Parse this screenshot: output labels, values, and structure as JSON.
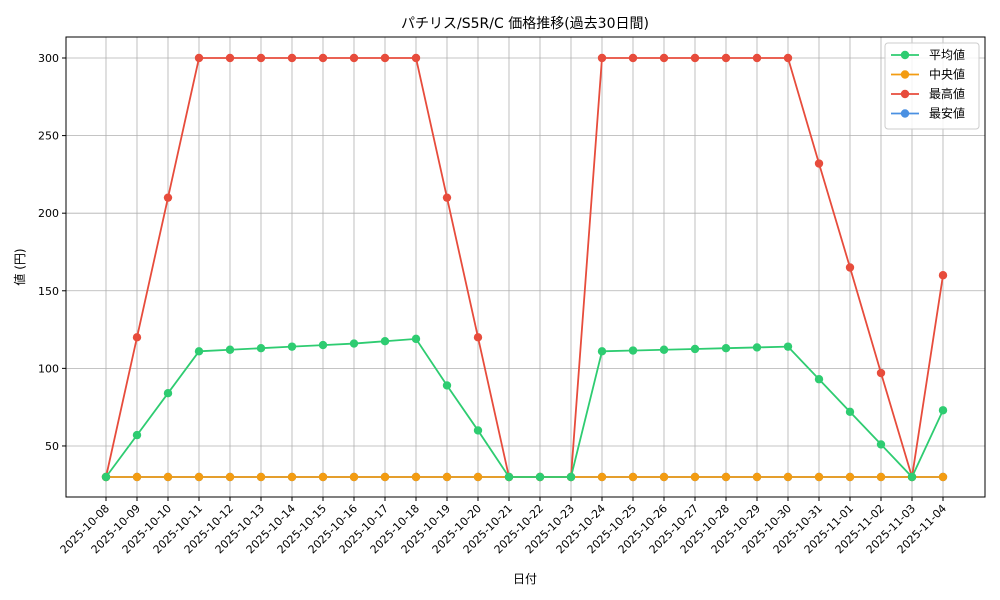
{
  "chart_data": {
    "type": "line",
    "title": "パチリス/S5R/C 価格推移(過去30日間)",
    "xlabel": "日付",
    "ylabel": "値 (円)",
    "ylim": [
      15,
      313
    ],
    "yticks": [
      50,
      100,
      150,
      200,
      250,
      300
    ],
    "grid": true,
    "legend_position": "upper right",
    "x": [
      "2025-10-08",
      "2025-10-09",
      "2025-10-10",
      "2025-10-11",
      "2025-10-12",
      "2025-10-13",
      "2025-10-14",
      "2025-10-15",
      "2025-10-16",
      "2025-10-17",
      "2025-10-18",
      "2025-10-19",
      "2025-10-20",
      "2025-10-21",
      "2025-10-22",
      "2025-10-23",
      "2025-10-24",
      "2025-10-25",
      "2025-10-26",
      "2025-10-27",
      "2025-10-28",
      "2025-10-29",
      "2025-10-30",
      "2025-10-31",
      "2025-11-01",
      "2025-11-02",
      "2025-11-03",
      "2025-11-04"
    ],
    "series": [
      {
        "name": "平均値",
        "color": "#2ecc71",
        "values": [
          30,
          57,
          84,
          111,
          112,
          113,
          114,
          115,
          116,
          117.5,
          119,
          89,
          60,
          30,
          30,
          30,
          111,
          111.5,
          112,
          112.5,
          113,
          113.5,
          114,
          93,
          72,
          51,
          30,
          73
        ]
      },
      {
        "name": "中央値",
        "color": "#f39c12",
        "values": [
          30,
          30,
          30,
          30,
          30,
          30,
          30,
          30,
          30,
          30,
          30,
          30,
          30,
          30,
          30,
          30,
          30,
          30,
          30,
          30,
          30,
          30,
          30,
          30,
          30,
          30,
          30,
          30
        ]
      },
      {
        "name": "最高値",
        "color": "#e74c3c",
        "values": [
          30,
          120,
          210,
          300,
          300,
          300,
          300,
          300,
          300,
          300,
          300,
          210,
          120,
          30,
          30,
          30,
          300,
          300,
          300,
          300,
          300,
          300,
          300,
          232,
          165,
          97,
          30,
          160
        ]
      },
      {
        "name": "最安値",
        "color": "#4a90e2",
        "values": [
          30,
          30,
          30,
          30,
          30,
          30,
          30,
          30,
          30,
          30,
          30,
          30,
          30,
          30,
          30,
          30,
          30,
          30,
          30,
          30,
          30,
          30,
          30,
          30,
          30,
          30,
          30,
          30
        ]
      }
    ],
    "draw_order": [
      2,
      3,
      1,
      0
    ]
  }
}
